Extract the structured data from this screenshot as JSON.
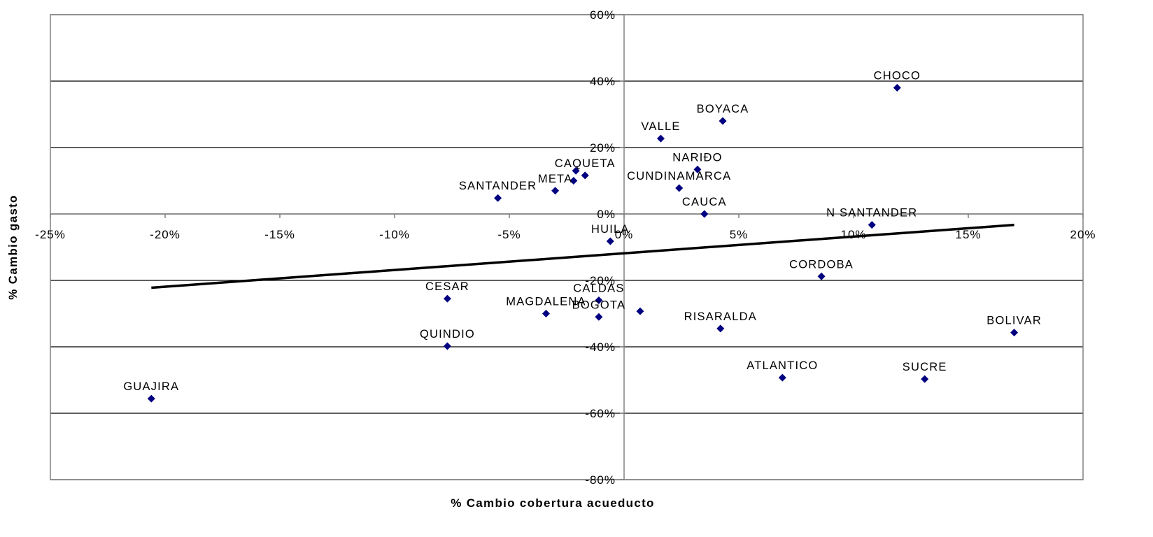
{
  "chart_data": {
    "type": "scatter",
    "title": "",
    "xlabel": "% Cambio cobertura acueducto",
    "ylabel": "% Cambio gasto",
    "xlim": [
      -25,
      20
    ],
    "ylim": [
      -80,
      60
    ],
    "x_ticks": [
      -25,
      -20,
      -15,
      -10,
      -5,
      0,
      5,
      10,
      15,
      20
    ],
    "x_tick_labels": [
      "-25%",
      "-20%",
      "-15%",
      "-10%",
      "-5%",
      "0%",
      "5%",
      "10%",
      "15%",
      "20%"
    ],
    "y_ticks": [
      60,
      40,
      20,
      0,
      -20,
      -40,
      -60,
      -80
    ],
    "y_tick_labels": [
      "60%",
      "40%",
      "20%",
      "0%",
      "-20%",
      "-40%",
      "-60%",
      "-80%"
    ],
    "grid": "horizontal",
    "colors": {
      "marker": "#000080",
      "trendline": "#000000",
      "grid": "#000000"
    },
    "series": [
      {
        "points": [
          {
            "label": "CHOCO",
            "x": 11.9,
            "y": 38
          },
          {
            "label": "BOYACA",
            "x": 4.3,
            "y": 28
          },
          {
            "label": "VALLE",
            "x": 1.6,
            "y": 22.7
          },
          {
            "label": "NARIÐO",
            "x": 3.2,
            "y": 13.4
          },
          {
            "label": "CUNDINAMARCA",
            "x": 2.4,
            "y": 7.8
          },
          {
            "label": "CAUCA",
            "x": 3.5,
            "y": 0
          },
          {
            "label": "CAQUETA",
            "x": -1.7,
            "y": 11.6
          },
          {
            "label": "",
            "x": -2.1,
            "y": 13
          },
          {
            "label": "",
            "x": -2.2,
            "y": 10
          },
          {
            "label": "META",
            "x": -3.0,
            "y": 7
          },
          {
            "label": "SANTANDER",
            "x": -5.5,
            "y": 4.8
          },
          {
            "label": "N SANTANDER",
            "x": 10.8,
            "y": -3.3
          },
          {
            "label": "HUILA",
            "x": -0.6,
            "y": -8.2
          },
          {
            "label": "CORDOBA",
            "x": 8.6,
            "y": -18.8
          },
          {
            "label": "CESAR",
            "x": -7.7,
            "y": -25.5
          },
          {
            "label": "CALDAS",
            "x": -1.1,
            "y": -26
          },
          {
            "label": "",
            "x": 0.7,
            "y": -29.3
          },
          {
            "label": "MAGDALENA",
            "x": -3.4,
            "y": -30
          },
          {
            "label": "BOGOTA",
            "x": -1.1,
            "y": -31
          },
          {
            "label": "RISARALDA",
            "x": 4.2,
            "y": -34.5
          },
          {
            "label": "BOLIVAR",
            "x": 17.0,
            "y": -35.7
          },
          {
            "label": "QUINDIO",
            "x": -7.7,
            "y": -39.8
          },
          {
            "label": "ATLANTICO",
            "x": 6.9,
            "y": -49.3
          },
          {
            "label": "SUCRE",
            "x": 13.1,
            "y": -49.7
          },
          {
            "label": "GUAJIRA",
            "x": -20.6,
            "y": -55.6
          }
        ]
      }
    ],
    "trendline": {
      "x": [
        -20.6,
        17.0
      ],
      "y": [
        -22.2,
        -3.3
      ]
    }
  }
}
